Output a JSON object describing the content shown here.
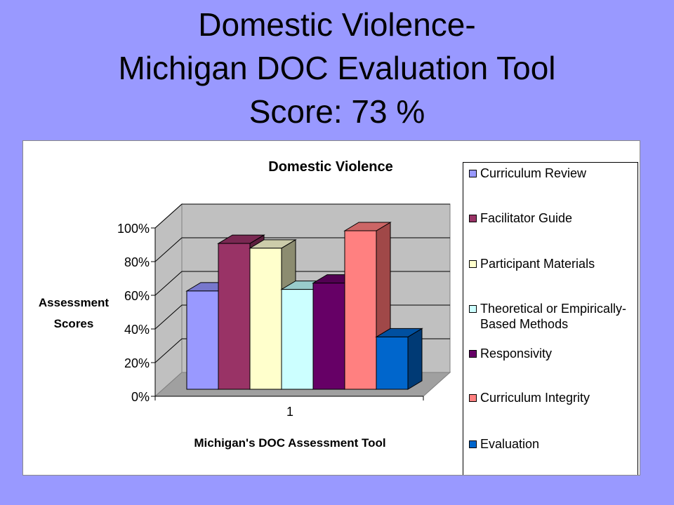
{
  "slide": {
    "title_line1": "Domestic Violence-",
    "title_line2": "Michigan DOC Evaluation Tool",
    "title_line3": "Score: 73 %"
  },
  "chart_data": {
    "type": "bar",
    "title": "Domestic Violence",
    "ylabel_line1": "Assessment",
    "ylabel_line2": "Scores",
    "xlabel": "Michigan's DOC Assessment Tool",
    "categories": [
      "1"
    ],
    "y_ticks": [
      "0%",
      "20%",
      "40%",
      "60%",
      "80%",
      "100%"
    ],
    "ylim": [
      0,
      1
    ],
    "grid": true,
    "three_d": true,
    "legend_position": "right",
    "series": [
      {
        "name": "Curriculum Review",
        "values": [
          0.62
        ],
        "color": "#9999ff",
        "top": "#7777cc",
        "side": "#5a5aa0"
      },
      {
        "name": "Facilitator Guide",
        "values": [
          0.92
        ],
        "color": "#993366",
        "top": "#7a2852",
        "side": "#5c1e3e"
      },
      {
        "name": "Participant Materials",
        "values": [
          0.89
        ],
        "color": "#ffffcc",
        "top": "#ccccaa",
        "side": "#8c8c70"
      },
      {
        "name": "Theoretical or Empirically-Based Methods",
        "values": [
          0.63
        ],
        "color": "#ccffff",
        "top": "#99cccc",
        "side": "#6a8e8e"
      },
      {
        "name": "Responsivity",
        "values": [
          0.67
        ],
        "color": "#660066",
        "top": "#520052",
        "side": "#3a003a"
      },
      {
        "name": "Curriculum Integrity",
        "values": [
          1.0
        ],
        "color": "#ff8080",
        "top": "#cc6666",
        "side": "#a04848"
      },
      {
        "name": "Evaluation",
        "values": [
          0.33
        ],
        "color": "#0066cc",
        "top": "#0050a0",
        "side": "#003a75"
      }
    ],
    "legend_lines": [
      [
        "Curriculum Review"
      ],
      [
        "Facilitator Guide"
      ],
      [
        "Participant Materials"
      ],
      [
        "Theoretical or Empirically-",
        "Based Methods"
      ],
      [
        "Responsivity"
      ],
      [
        "Curriculum Integrity"
      ],
      [
        "Evaluation"
      ]
    ]
  }
}
